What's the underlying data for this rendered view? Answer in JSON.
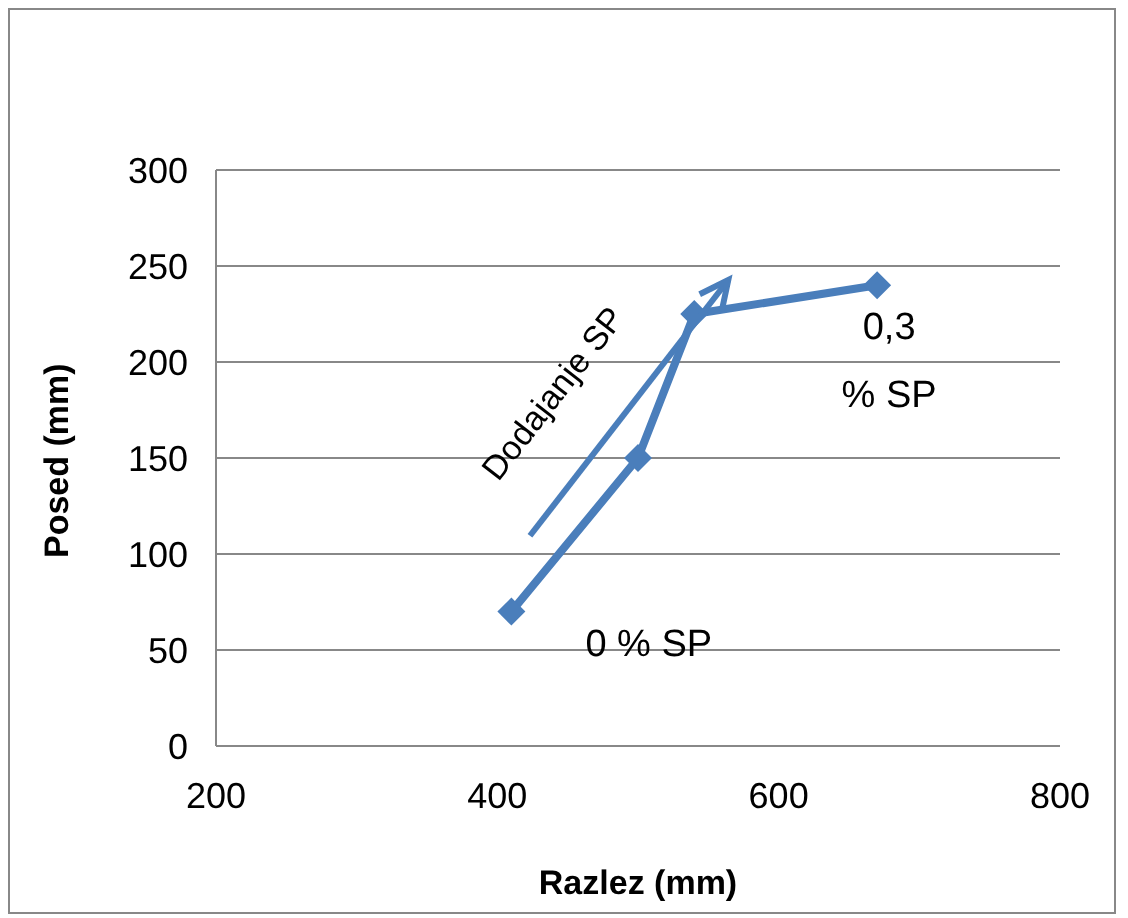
{
  "chart_data": {
    "type": "line",
    "xlabel": "Razlez (mm)",
    "ylabel": "Posed (mm)",
    "x": [
      410,
      500,
      540,
      670
    ],
    "series": [
      {
        "color": "#4a7ebb",
        "values": [
          70,
          150,
          225,
          240
        ]
      }
    ],
    "xlim": [
      200,
      800
    ],
    "xticks": [
      200,
      400,
      600,
      800
    ],
    "ylim": [
      0,
      300
    ],
    "yticks": [
      0,
      50,
      100,
      150,
      200,
      250,
      300
    ],
    "grid": "y",
    "marker": "diamond",
    "line_style": "solid",
    "legend": false,
    "annotations": [
      "Dodajanje SP",
      {
        "text": "0 % SP",
        "x": 410,
        "y": 70
      },
      {
        "text": "0,3 % SP",
        "x": 670,
        "y": 240
      }
    ]
  }
}
